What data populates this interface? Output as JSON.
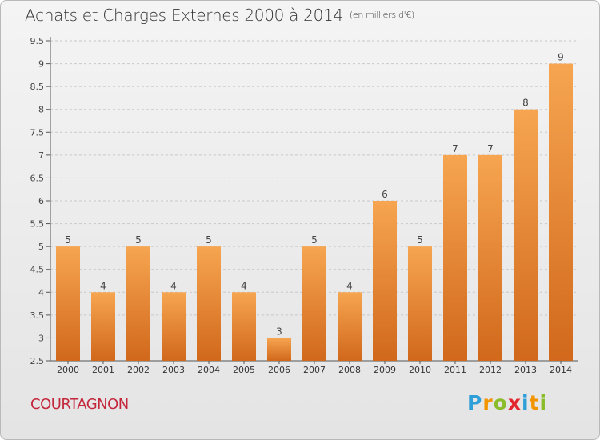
{
  "title": "Achats et Charges Externes 2000 à 2014",
  "subtitle": "(en milliers d'€)",
  "location": "COURTAGNON",
  "logo": {
    "letters": [
      "P",
      "r",
      "o",
      "x",
      "i",
      "t",
      "i"
    ],
    "colors": [
      "#2e9fd8",
      "#f29400",
      "#8bbd2a",
      "#e3262d",
      "#2e9fd8",
      "#f29400",
      "#8bbd2a"
    ]
  },
  "colors": {
    "bar_top": "#f6a550",
    "bar_bottom": "#d1681b",
    "location": "#c4263c"
  },
  "chart_data": {
    "type": "bar",
    "categories": [
      "2000",
      "2001",
      "2002",
      "2003",
      "2004",
      "2005",
      "2006",
      "2007",
      "2008",
      "2009",
      "2010",
      "2011",
      "2012",
      "2013",
      "2014"
    ],
    "values": [
      5,
      4,
      5,
      4,
      5,
      4,
      3,
      5,
      4,
      6,
      5,
      7,
      7,
      8,
      9
    ],
    "data_labels": [
      "5",
      "4",
      "5",
      "4",
      "5",
      "4",
      "3",
      "5",
      "4",
      "6",
      "5",
      "7",
      "7",
      "8",
      "9"
    ],
    "yticks": [
      "2.5",
      "3",
      "3.5",
      "4",
      "4.5",
      "5",
      "5.5",
      "6",
      "6.5",
      "7",
      "7.5",
      "8",
      "8.5",
      "9",
      "9.5"
    ],
    "ylim": [
      2.5,
      9.5
    ],
    "grid": "horizontal dashed",
    "title": "Achats et Charges Externes 2000 à 2014",
    "xlabel": "",
    "ylabel": ""
  }
}
